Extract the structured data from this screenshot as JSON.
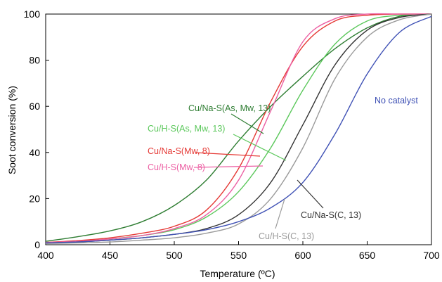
{
  "chart_data": {
    "type": "line",
    "title": "",
    "xlabel": "Temperature (ºC)",
    "ylabel": "Soot conversion (%)",
    "xlim": [
      400,
      700
    ],
    "ylim": [
      0,
      100
    ],
    "x_ticks": [
      400,
      450,
      500,
      550,
      600,
      650,
      700
    ],
    "y_ticks": [
      0,
      20,
      40,
      60,
      80,
      100
    ],
    "grid": false,
    "legend": "inline-labels",
    "x": [
      400,
      425,
      450,
      475,
      500,
      525,
      550,
      575,
      600,
      625,
      650,
      675,
      700
    ],
    "series": [
      {
        "name": "Cu/Na-S(As, Mw, 13)",
        "color": "#2e7d32",
        "values": [
          1.5,
          3.5,
          6,
          10,
          17,
          28,
          45,
          60,
          73,
          85,
          94,
          99,
          100
        ]
      },
      {
        "name": "Cu/H-S(As, Mw, 13)",
        "color": "#5cc85c",
        "values": [
          1,
          1.5,
          2.5,
          4,
          6.5,
          12,
          23,
          42,
          67,
          87,
          97,
          99.5,
          100
        ]
      },
      {
        "name": "Cu/Na-S(Mw, 8)",
        "color": "#e53935",
        "values": [
          1,
          1.8,
          3,
          5,
          8,
          15,
          33,
          62,
          86,
          97,
          99.5,
          100,
          100
        ]
      },
      {
        "name": "Cu/H-S(Mw, 8)",
        "color": "#ec5fa3",
        "values": [
          1,
          1.5,
          2.5,
          4,
          7,
          13,
          28,
          58,
          88,
          98,
          100,
          100,
          100
        ]
      },
      {
        "name": "Cu/Na-S(C, 13)",
        "color": "#333333",
        "values": [
          0.8,
          1.2,
          2,
          3,
          4.5,
          7,
          13,
          27,
          52,
          78,
          93,
          98.5,
          100
        ]
      },
      {
        "name": "Cu/H-S(C, 13)",
        "color": "#9a9a9a",
        "values": [
          0.5,
          0.8,
          1.2,
          2,
          3,
          5,
          9,
          20,
          42,
          72,
          90,
          97.5,
          100
        ]
      },
      {
        "name": "No catalyst",
        "color": "#3f51b5",
        "values": [
          0.8,
          1.2,
          2,
          3,
          4.5,
          6.5,
          10,
          16,
          27,
          48,
          74,
          92,
          99
        ]
      }
    ]
  }
}
